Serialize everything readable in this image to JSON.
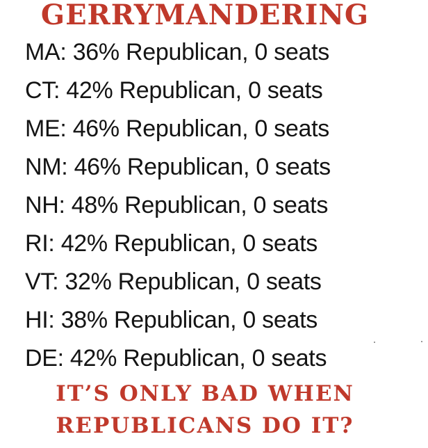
{
  "title": "GERRYMANDERING",
  "accent_color": "#c0392b",
  "stats": [
    "MA: 36% Republican, 0 seats",
    "CT: 42% Republican, 0 seats",
    "ME: 46% Republican, 0 seats",
    "NM: 46% Republican, 0 seats",
    "NH: 48% Republican, 0 seats",
    "RI: 42% Republican, 0 seats",
    "VT: 32% Republican, 0 seats",
    "HI: 38% Republican, 0 seats",
    "DE: 42% Republican, 0 seats"
  ],
  "footer": {
    "line1": "IT’S ONLY BAD WHEN",
    "line2": "REPUBLICANS DO IT?"
  }
}
